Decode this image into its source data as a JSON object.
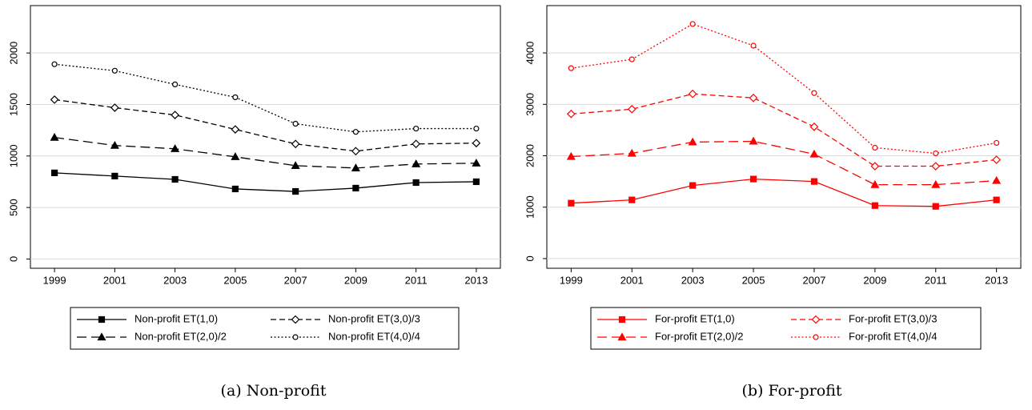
{
  "chart_data": [
    {
      "type": "line",
      "caption": "(a) Non-profit",
      "x": [
        1999,
        2001,
        2003,
        2005,
        2007,
        2009,
        2011,
        2013
      ],
      "xlim": [
        1998.2,
        2013.8
      ],
      "xticks": [
        1999,
        2001,
        2003,
        2005,
        2007,
        2009,
        2011,
        2013
      ],
      "ylim": [
        -90,
        2460
      ],
      "yticks": [
        0,
        500,
        1000,
        1500,
        2000
      ],
      "grid": true,
      "series": [
        {
          "name": "Non-profit ET(1,0)",
          "color": "#000000",
          "marker": "square",
          "style": "solid",
          "values": [
            836,
            805,
            773,
            680,
            656,
            688,
            742,
            750
          ]
        },
        {
          "name": "Non-profit ET(2,0)/2",
          "color": "#000000",
          "marker": "triangle",
          "style": "longdash",
          "values": [
            1180,
            1102,
            1070,
            992,
            906,
            883,
            922,
            930
          ]
        },
        {
          "name": "Non-profit ET(3,0)/3",
          "color": "#000000",
          "marker": "diamond",
          "style": "dash",
          "values": [
            1547,
            1469,
            1398,
            1258,
            1117,
            1047,
            1117,
            1125
          ]
        },
        {
          "name": "Non-profit ET(4,0)/4",
          "color": "#000000",
          "marker": "circle",
          "style": "dot",
          "values": [
            1891,
            1828,
            1695,
            1570,
            1313,
            1234,
            1266,
            1266
          ]
        }
      ]
    },
    {
      "type": "line",
      "caption": "(b) For-profit",
      "x": [
        1999,
        2001,
        2003,
        2005,
        2007,
        2009,
        2011,
        2013
      ],
      "xlim": [
        1998.2,
        2013.8
      ],
      "xticks": [
        1999,
        2001,
        2003,
        2005,
        2007,
        2009,
        2011,
        2013
      ],
      "ylim": [
        -188,
        4920
      ],
      "yticks": [
        0,
        1000,
        2000,
        3000,
        4000
      ],
      "grid": true,
      "series": [
        {
          "name": "For-profit ET(1,0)",
          "color": "#ff0000",
          "marker": "square",
          "style": "solid",
          "values": [
            1078,
            1141,
            1422,
            1547,
            1500,
            1031,
            1016,
            1141
          ]
        },
        {
          "name": "For-profit ET(2,0)/2",
          "color": "#ff0000",
          "marker": "triangle",
          "style": "longdash",
          "values": [
            1984,
            2047,
            2266,
            2281,
            2031,
            1438,
            1438,
            1516
          ]
        },
        {
          "name": "For-profit ET(3,0)/3",
          "color": "#ff0000",
          "marker": "diamond",
          "style": "dash",
          "values": [
            2813,
            2906,
            3203,
            3125,
            2563,
            1797,
            1797,
            1922
          ]
        },
        {
          "name": "For-profit ET(4,0)/4",
          "color": "#ff0000",
          "marker": "circle",
          "style": "dot",
          "values": [
            3703,
            3875,
            4563,
            4141,
            3219,
            2156,
            2047,
            2250
          ]
        }
      ]
    }
  ]
}
